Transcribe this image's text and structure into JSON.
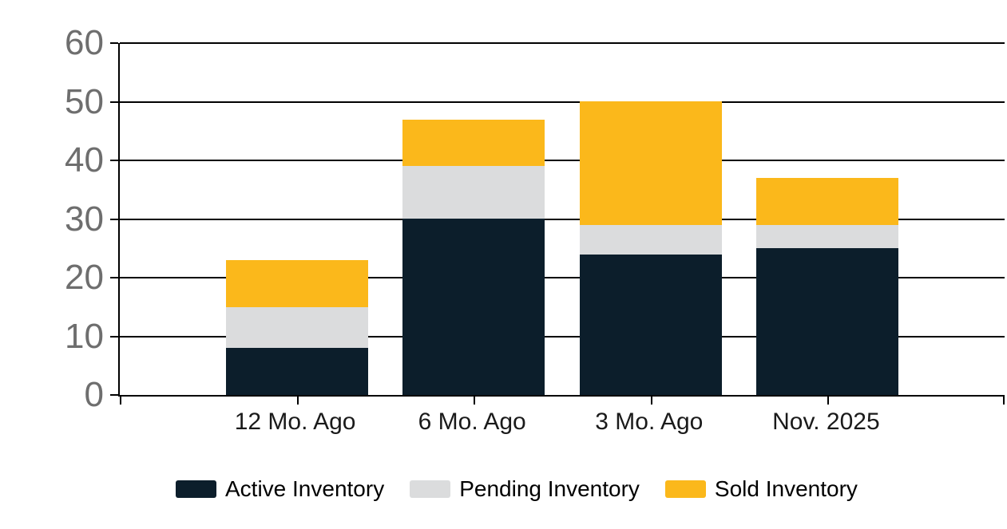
{
  "chart_data": {
    "type": "bar",
    "stacked": true,
    "categories": [
      "12 Mo. Ago",
      "6 Mo. Ago",
      "3 Mo. Ago",
      "Nov. 2025"
    ],
    "series": [
      {
        "name": "Active Inventory",
        "color": "#0C1E2B",
        "values": [
          8,
          30,
          24,
          25
        ]
      },
      {
        "name": "Pending Inventory",
        "color": "#DBDCDD",
        "values": [
          7,
          9,
          5,
          4
        ]
      },
      {
        "name": "Sold Inventory",
        "color": "#FBB81B",
        "values": [
          8,
          8,
          21,
          8
        ]
      }
    ],
    "stack_totals": [
      23,
      47,
      50,
      37
    ],
    "ylim": [
      0,
      60
    ],
    "y_ticks": [
      0,
      10,
      20,
      30,
      40,
      50,
      60
    ],
    "grid": "horizontal",
    "legend_position": "bottom",
    "colors": {
      "background": "#FFFFFF",
      "axis": "#000000",
      "y_tick_label": "#6E6E6E",
      "category_label": "#1A1A1A",
      "legend_text": "#000000"
    }
  }
}
